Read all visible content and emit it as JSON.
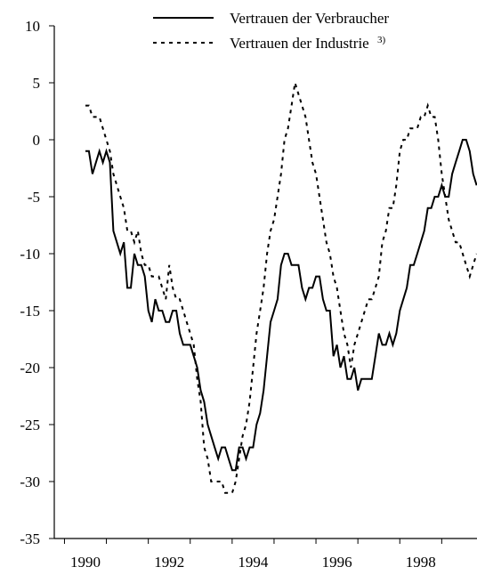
{
  "chart_data": {
    "type": "line",
    "title": "",
    "xlabel": "",
    "ylabel": "",
    "xlim": [
      1989.5,
      1999.5
    ],
    "ylim": [
      -35,
      10
    ],
    "yticks": [
      10,
      5,
      0,
      -5,
      -10,
      -15,
      -20,
      -25,
      -30,
      -35
    ],
    "ytick_labels": [
      "10",
      "5",
      "0",
      "-5",
      "-10",
      "-15",
      "-20",
      "-25",
      "-30",
      "-35"
    ],
    "xticks": [
      1990,
      1992,
      1994,
      1996,
      1998
    ],
    "xtick_labels": [
      "1990",
      "1992",
      "1994",
      "1996",
      "1998"
    ],
    "grid": false,
    "legend": {
      "placement": "top-right",
      "entries": [
        {
          "label": "Vertrauen der Verbraucher",
          "sup": "",
          "style": "solid"
        },
        {
          "label": "Vertrauen der Industrie",
          "sup": "3)",
          "style": "dashed"
        }
      ]
    },
    "series": [
      {
        "name": "Vertrauen der Verbraucher",
        "style": "solid",
        "color": "#000000",
        "x": [
          1990.0,
          1990.0833,
          1990.1667,
          1990.25,
          1990.3333,
          1990.4167,
          1990.5,
          1990.5833,
          1990.6667,
          1990.75,
          1990.8333,
          1990.9167,
          1991.0,
          1991.0833,
          1991.1667,
          1991.25,
          1991.3333,
          1991.4167,
          1991.5,
          1991.5833,
          1991.6667,
          1991.75,
          1991.8333,
          1991.9167,
          1992.0,
          1992.0833,
          1992.1667,
          1992.25,
          1992.3333,
          1992.4167,
          1992.5,
          1992.5833,
          1992.6667,
          1992.75,
          1992.8333,
          1992.9167,
          1993.0,
          1993.0833,
          1993.1667,
          1993.25,
          1993.3333,
          1993.4167,
          1993.5,
          1993.5833,
          1993.6667,
          1993.75,
          1993.8333,
          1993.9167,
          1994.0,
          1994.0833,
          1994.1667,
          1994.25,
          1994.3333,
          1994.4167,
          1994.5,
          1994.5833,
          1994.6667,
          1994.75,
          1994.8333,
          1994.9167,
          1995.0,
          1995.0833,
          1995.1667,
          1995.25,
          1995.3333,
          1995.4167,
          1995.5,
          1995.5833,
          1995.6667,
          1995.75,
          1995.8333,
          1995.9167,
          1996.0,
          1996.0833,
          1996.1667,
          1996.25,
          1996.3333,
          1996.4167,
          1996.5,
          1996.5833,
          1996.6667,
          1996.75,
          1996.8333,
          1996.9167,
          1997.0,
          1997.0833,
          1997.1667,
          1997.25,
          1997.3333,
          1997.4167,
          1997.5,
          1997.5833,
          1997.6667,
          1997.75,
          1997.8333,
          1997.9167,
          1998.0,
          1998.0833,
          1998.1667,
          1998.25,
          1998.3333,
          1998.4167,
          1998.5,
          1998.5833,
          1998.6667,
          1998.75,
          1998.8333,
          1998.9167,
          1999.0,
          1999.0833,
          1999.1667,
          1999.25,
          1999.3333
        ],
        "values": [
          -1,
          -1,
          -3,
          -2,
          -1,
          -2,
          -1,
          -2,
          -8,
          -9,
          -10,
          -9,
          -13,
          -13,
          -10,
          -11,
          -11,
          -12,
          -15,
          -16,
          -14,
          -15,
          -15,
          -16,
          -16,
          -15,
          -15,
          -17,
          -18,
          -18,
          -18,
          -19,
          -20,
          -22,
          -23,
          -25,
          -26,
          -27,
          -28,
          -27,
          -27,
          -28,
          -29,
          -29,
          -27,
          -27,
          -28,
          -27,
          -27,
          -25,
          -24,
          -22,
          -19,
          -16,
          -15,
          -14,
          -11,
          -10,
          -10,
          -11,
          -11,
          -11,
          -13,
          -14,
          -13,
          -13,
          -12,
          -12,
          -14,
          -15,
          -15,
          -19,
          -18,
          -20,
          -19,
          -21,
          -21,
          -20,
          -22,
          -21,
          -21,
          -21,
          -21,
          -19,
          -17,
          -18,
          -18,
          -17,
          -18,
          -17,
          -15,
          -14,
          -13,
          -11,
          -11,
          -10,
          -9,
          -8,
          -6,
          -6,
          -5,
          -5,
          -4,
          -5,
          -5,
          -3,
          -2,
          -1,
          0,
          0,
          -1,
          -3,
          -4
        ]
      },
      {
        "name": "Vertrauen der Industrie",
        "style": "dashed",
        "color": "#000000",
        "x": [
          1990.0,
          1990.0833,
          1990.1667,
          1990.25,
          1990.3333,
          1990.4167,
          1990.5,
          1990.5833,
          1990.6667,
          1990.75,
          1990.8333,
          1990.9167,
          1991.0,
          1991.0833,
          1991.1667,
          1991.25,
          1991.3333,
          1991.4167,
          1991.5,
          1991.5833,
          1991.6667,
          1991.75,
          1991.8333,
          1991.9167,
          1992.0,
          1992.0833,
          1992.1667,
          1992.25,
          1992.3333,
          1992.4167,
          1992.5,
          1992.5833,
          1992.6667,
          1992.75,
          1992.8333,
          1992.9167,
          1993.0,
          1993.0833,
          1993.1667,
          1993.25,
          1993.3333,
          1993.4167,
          1993.5,
          1993.5833,
          1993.6667,
          1993.75,
          1993.8333,
          1993.9167,
          1994.0,
          1994.0833,
          1994.1667,
          1994.25,
          1994.3333,
          1994.4167,
          1994.5,
          1994.5833,
          1994.6667,
          1994.75,
          1994.8333,
          1994.9167,
          1995.0,
          1995.0833,
          1995.1667,
          1995.25,
          1995.3333,
          1995.4167,
          1995.5,
          1995.5833,
          1995.6667,
          1995.75,
          1995.8333,
          1995.9167,
          1996.0,
          1996.0833,
          1996.1667,
          1996.25,
          1996.3333,
          1996.4167,
          1996.5,
          1996.5833,
          1996.6667,
          1996.75,
          1996.8333,
          1996.9167,
          1997.0,
          1997.0833,
          1997.1667,
          1997.25,
          1997.3333,
          1997.4167,
          1997.5,
          1997.5833,
          1997.6667,
          1997.75,
          1997.8333,
          1997.9167,
          1998.0,
          1998.0833,
          1998.1667,
          1998.25,
          1998.3333,
          1998.4167,
          1998.5,
          1998.5833,
          1998.6667,
          1998.75,
          1998.8333,
          1998.9167,
          1999.0,
          1999.0833,
          1999.1667,
          1999.25,
          1999.3333
        ],
        "values": [
          3,
          3,
          2,
          2,
          2,
          1,
          0,
          -1,
          -3,
          -4,
          -5,
          -6,
          -8,
          -8,
          -9,
          -8,
          -10,
          -11,
          -11,
          -12,
          -12,
          -12,
          -13,
          -14,
          -11,
          -13,
          -14,
          -14,
          -15,
          -16,
          -17,
          -18,
          -21,
          -23,
          -27,
          -28,
          -30,
          -30,
          -30,
          -30,
          -31,
          -31,
          -31,
          -30,
          -28,
          -26,
          -25,
          -23,
          -20,
          -17,
          -15,
          -13,
          -10,
          -8,
          -7,
          -5,
          -3,
          0,
          1,
          3,
          5,
          4,
          3,
          2,
          0,
          -2,
          -3,
          -5,
          -7,
          -9,
          -10,
          -12,
          -13,
          -15,
          -17,
          -18,
          -20,
          -18,
          -17,
          -16,
          -15,
          -14,
          -14,
          -13,
          -12,
          -9,
          -8,
          -6,
          -6,
          -4,
          -1,
          0,
          0,
          1,
          1,
          1,
          2,
          2,
          3,
          2,
          2,
          0,
          -3,
          -5,
          -7,
          -8,
          -9,
          -9,
          -10,
          -11,
          -12,
          -11,
          -10
        ]
      }
    ]
  }
}
